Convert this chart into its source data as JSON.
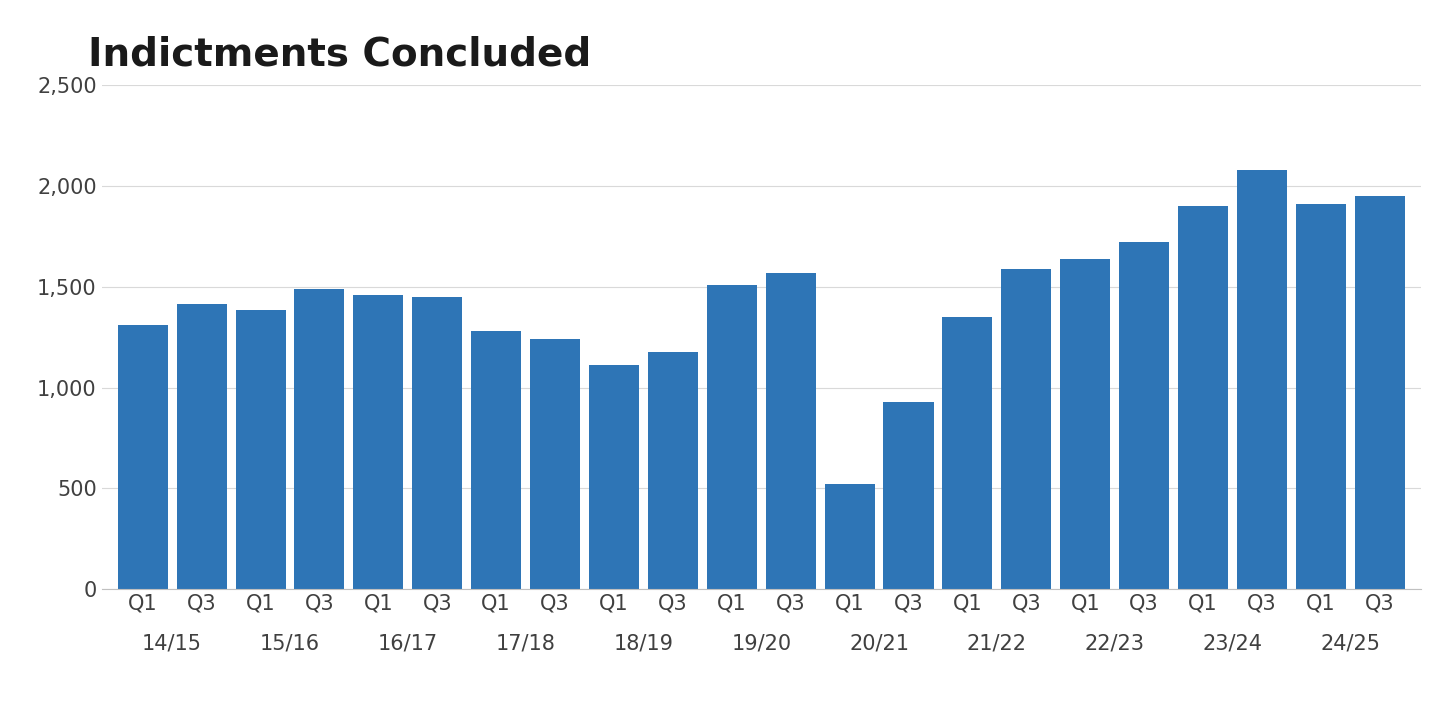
{
  "title": "Indictments Concluded",
  "bar_color": "#2E75B6",
  "background_color": "#FFFFFF",
  "ylim": [
    0,
    2500
  ],
  "yticks": [
    0,
    500,
    1000,
    1500,
    2000,
    2500
  ],
  "values": [
    1310,
    1415,
    1385,
    1490,
    1460,
    1450,
    1280,
    1240,
    1110,
    1175,
    1510,
    1570,
    520,
    930,
    1350,
    1590,
    1640,
    1720,
    1900,
    2080,
    1910,
    1950
  ],
  "q_labels": [
    "Q1",
    "Q3",
    "Q1",
    "Q3",
    "Q1",
    "Q3",
    "Q1",
    "Q3",
    "Q1",
    "Q3",
    "Q1",
    "Q3",
    "Q1",
    "Q3",
    "Q1",
    "Q3",
    "Q1",
    "Q3",
    "Q1",
    "Q3",
    "Q1",
    "Q3"
  ],
  "year_labels": [
    "14/15",
    "15/16",
    "16/17",
    "17/18",
    "18/19",
    "19/20",
    "20/21",
    "21/22",
    "22/23",
    "23/24",
    "24/25"
  ],
  "grid_color": "#D9D9D9",
  "title_fontsize": 28,
  "tick_fontsize": 15,
  "year_label_fontsize": 15
}
